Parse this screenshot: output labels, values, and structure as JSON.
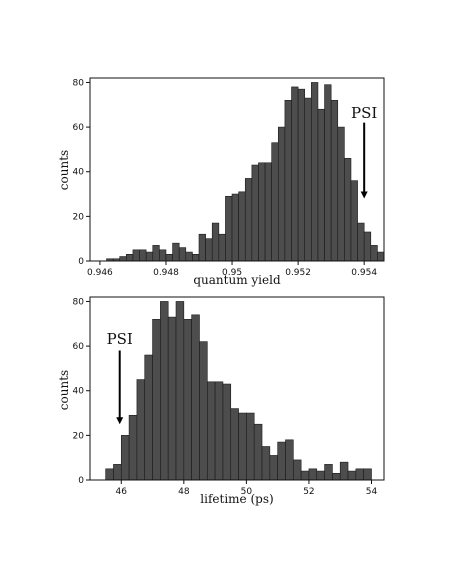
{
  "chart_data": [
    {
      "type": "bar",
      "xlabel": "quantum yield",
      "ylabel": "counts",
      "xlim": [
        0.9457,
        0.9546
      ],
      "ylim": [
        0,
        82
      ],
      "bin_width": 0.0002,
      "bin_starts": [
        0.9462,
        0.9464,
        0.9466,
        0.9468,
        0.947,
        0.9472,
        0.9474,
        0.9476,
        0.9478,
        0.948,
        0.9482,
        0.9484,
        0.9486,
        0.9488,
        0.949,
        0.9492,
        0.9494,
        0.9496,
        0.9498,
        0.95,
        0.9502,
        0.9504,
        0.9506,
        0.9508,
        0.951,
        0.9512,
        0.9514,
        0.9516,
        0.9518,
        0.952,
        0.9522,
        0.9524,
        0.9526,
        0.9528,
        0.953,
        0.9532,
        0.9534,
        0.9536,
        0.9538,
        0.954,
        0.9542,
        0.9544
      ],
      "values": [
        1,
        1,
        2,
        3,
        5,
        5,
        4,
        7,
        5,
        3,
        8,
        6,
        4,
        3,
        12,
        10,
        17,
        12,
        29,
        30,
        31,
        37,
        43,
        44,
        44,
        53,
        60,
        72,
        78,
        77,
        73,
        80,
        68,
        79,
        72,
        60,
        46,
        36,
        17,
        13,
        7,
        4
      ],
      "xticks": [
        0.946,
        0.948,
        0.95,
        0.952,
        0.954
      ],
      "xtick_labels": [
        "0.946",
        "0.948",
        "0.95",
        "0.952",
        "0.954"
      ],
      "yticks": [
        0,
        20,
        40,
        60,
        80
      ],
      "ytick_labels": [
        "0",
        "20",
        "40",
        "60",
        "80"
      ],
      "annotation": {
        "text": "PSI",
        "x": 0.954,
        "arrow_from": 62,
        "arrow_to": 28,
        "text_y": 64
      }
    },
    {
      "type": "bar",
      "xlabel": "lifetime (ps)",
      "ylabel": "counts",
      "xlim": [
        45.0,
        54.4
      ],
      "ylim": [
        0,
        82
      ],
      "bin_width": 0.25,
      "bin_starts": [
        45.5,
        45.75,
        46.0,
        46.25,
        46.5,
        46.75,
        47.0,
        47.25,
        47.5,
        47.75,
        48.0,
        48.25,
        48.5,
        48.75,
        49.0,
        49.25,
        49.5,
        49.75,
        50.0,
        50.25,
        50.5,
        50.75,
        51.0,
        51.25,
        51.5,
        51.75,
        52.0,
        52.25,
        52.5,
        52.75,
        53.0,
        53.25,
        53.5,
        53.75
      ],
      "values": [
        5,
        7,
        20,
        29,
        45,
        56,
        72,
        80,
        73,
        80,
        72,
        74,
        62,
        44,
        44,
        43,
        32,
        30,
        30,
        25,
        15,
        11,
        17,
        18,
        9,
        4,
        5,
        4,
        7,
        3,
        8,
        4,
        5,
        5
      ],
      "xticks": [
        46,
        48,
        50,
        52,
        54
      ],
      "xtick_labels": [
        "46",
        "48",
        "50",
        "52",
        "54"
      ],
      "yticks": [
        0,
        20,
        40,
        60,
        80
      ],
      "ytick_labels": [
        "0",
        "20",
        "40",
        "60",
        "80"
      ],
      "annotation": {
        "text": "PSI",
        "x": 45.95,
        "arrow_from": 58,
        "arrow_to": 25,
        "text_y": 61
      }
    }
  ]
}
